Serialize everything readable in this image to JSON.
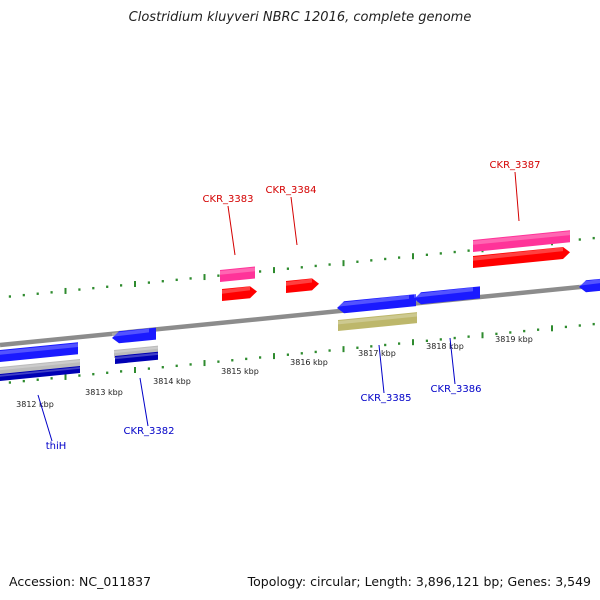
{
  "title": "Clostridium kluyveri NBRC 12016, complete genome",
  "footer": {
    "accession_text": "Accession: NC_011837",
    "stats_text": "Topology: circular; Length: 3,896,121 bp; Genes: 3,549"
  },
  "colors": {
    "backbone": "#8c8c8c",
    "tick": "#2e8b2e",
    "forward_label": "#d40000",
    "reverse_label": "#0000c8",
    "forward_cds": "#ff0000",
    "forward_gene": "#ff3399",
    "reverse_cds": "#1a1aff",
    "reverse_gene": "#0000b4",
    "khaki_feature": "#bdb76b",
    "grey_feature": "#bbbbbb"
  },
  "axis": {
    "scale_labels": [
      "3812 kbp",
      "3813 kbp",
      "3814 kbp",
      "3815 kbp",
      "3816 kbp",
      "3817 kbp",
      "3818 kbp",
      "3819 kbp"
    ]
  },
  "forward_genes": [
    "CKR_3383",
    "CKR_3384",
    "CKR_3387"
  ],
  "reverse_genes": [
    "thiH",
    "CKR_3382",
    "CKR_3385",
    "CKR_3386"
  ]
}
